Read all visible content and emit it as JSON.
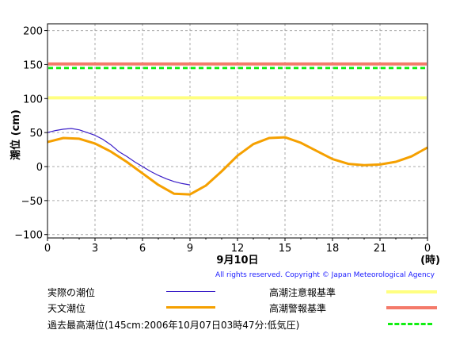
{
  "chart_data": {
    "type": "line",
    "ylabel": "潮位 (cm)",
    "ylim": [
      -105,
      210
    ],
    "xlim": [
      0,
      24
    ],
    "x_ticks": [
      "0",
      "3",
      "6",
      "9",
      "12",
      "15",
      "18",
      "21",
      "0"
    ],
    "x_tick_values": [
      0,
      3,
      6,
      9,
      12,
      15,
      18,
      21,
      24
    ],
    "x_unit": "(時)",
    "date_label": "9月10日",
    "y_ticks": [
      "200",
      "150",
      "100",
      "50",
      "0",
      "−50",
      "−100"
    ],
    "y_tick_values": [
      200,
      150,
      100,
      50,
      0,
      -50,
      -100
    ],
    "grid": true,
    "series": [
      {
        "name": "実際の潮位",
        "color": "#3a1ec8",
        "x": [
          0,
          0.5,
          1,
          1.5,
          2,
          2.5,
          3,
          3.5,
          4,
          4.5,
          5,
          5.5,
          6,
          6.5,
          7,
          7.5,
          8,
          8.5,
          9
        ],
        "y": [
          50,
          53,
          55,
          56,
          54,
          50,
          46,
          40,
          32,
          22,
          15,
          7,
          0,
          -7,
          -13,
          -18,
          -22,
          -25,
          -27
        ]
      },
      {
        "name": "天文潮位",
        "color": "#f5a000",
        "x": [
          0,
          1,
          2,
          3,
          4,
          5,
          6,
          7,
          8,
          9,
          10,
          11,
          12,
          13,
          14,
          15,
          16,
          17,
          18,
          19,
          20,
          21,
          22,
          23,
          24
        ],
        "y": [
          36,
          42,
          41,
          34,
          22,
          7,
          -10,
          -27,
          -40,
          -41,
          -28,
          -7,
          16,
          33,
          42,
          43,
          35,
          23,
          11,
          4,
          2,
          3,
          7,
          15,
          28
        ]
      }
    ],
    "reference_lines": [
      {
        "name": "高潮注意報基準",
        "value": 101,
        "color": "#ffff80"
      },
      {
        "name": "高潮警報基準",
        "value": 151,
        "color": "#f47a6a"
      },
      {
        "name": "過去最高潮位(145cm:2006年10月07日03時47分:低気圧)",
        "value": 145,
        "color": "#11ee11",
        "dashed": true
      }
    ]
  },
  "copyright": "All rights reserved. Copyright © Japan Meteorological Agency",
  "legend": {
    "actual": "実際の潮位",
    "astronomical": "天文潮位",
    "record": "過去最高潮位(145cm:2006年10月07日03時47分:低気圧)",
    "advisory": "高潮注意報基準",
    "warning": "高潮警報基準"
  }
}
